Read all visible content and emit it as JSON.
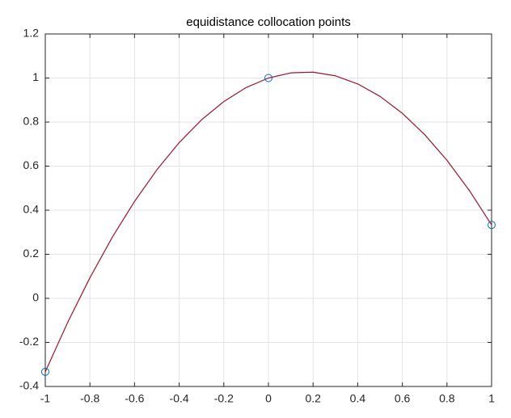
{
  "chart_data": {
    "type": "line",
    "title": "equidistance collocation points",
    "xlim": [
      -1,
      1
    ],
    "xticks": [
      -1,
      -0.8,
      -0.6,
      -0.4,
      -0.2,
      0,
      0.2,
      0.4,
      0.6,
      0.8,
      1
    ],
    "ylim": [
      -0.4,
      1.2
    ],
    "yticks": [
      -0.4,
      -0.2,
      0,
      0.2,
      0.4,
      0.6,
      0.8,
      1,
      1.2
    ],
    "grid": true,
    "series": [
      {
        "color": "#a2142f",
        "style": "line",
        "x": [
          -1,
          -0.9,
          -0.8,
          -0.7,
          -0.6,
          -0.5,
          -0.4,
          -0.3,
          -0.2,
          -0.1,
          0,
          0.1,
          0.2,
          0.3,
          0.4,
          0.5,
          0.6,
          0.7,
          0.8,
          0.9,
          1
        ],
        "values": [
          -0.3333,
          -0.11,
          0.0933,
          0.2767,
          0.44,
          0.5833,
          0.7067,
          0.81,
          0.8933,
          0.9567,
          1,
          1.0233,
          1.0267,
          1.01,
          0.9733,
          0.9167,
          0.84,
          0.7433,
          0.6267,
          0.49,
          0.3333
        ]
      },
      {
        "color": "#0072bd",
        "style": "markers",
        "x": [
          -1,
          0,
          1
        ],
        "values": [
          -0.3333,
          1,
          0.3333
        ]
      }
    ]
  }
}
